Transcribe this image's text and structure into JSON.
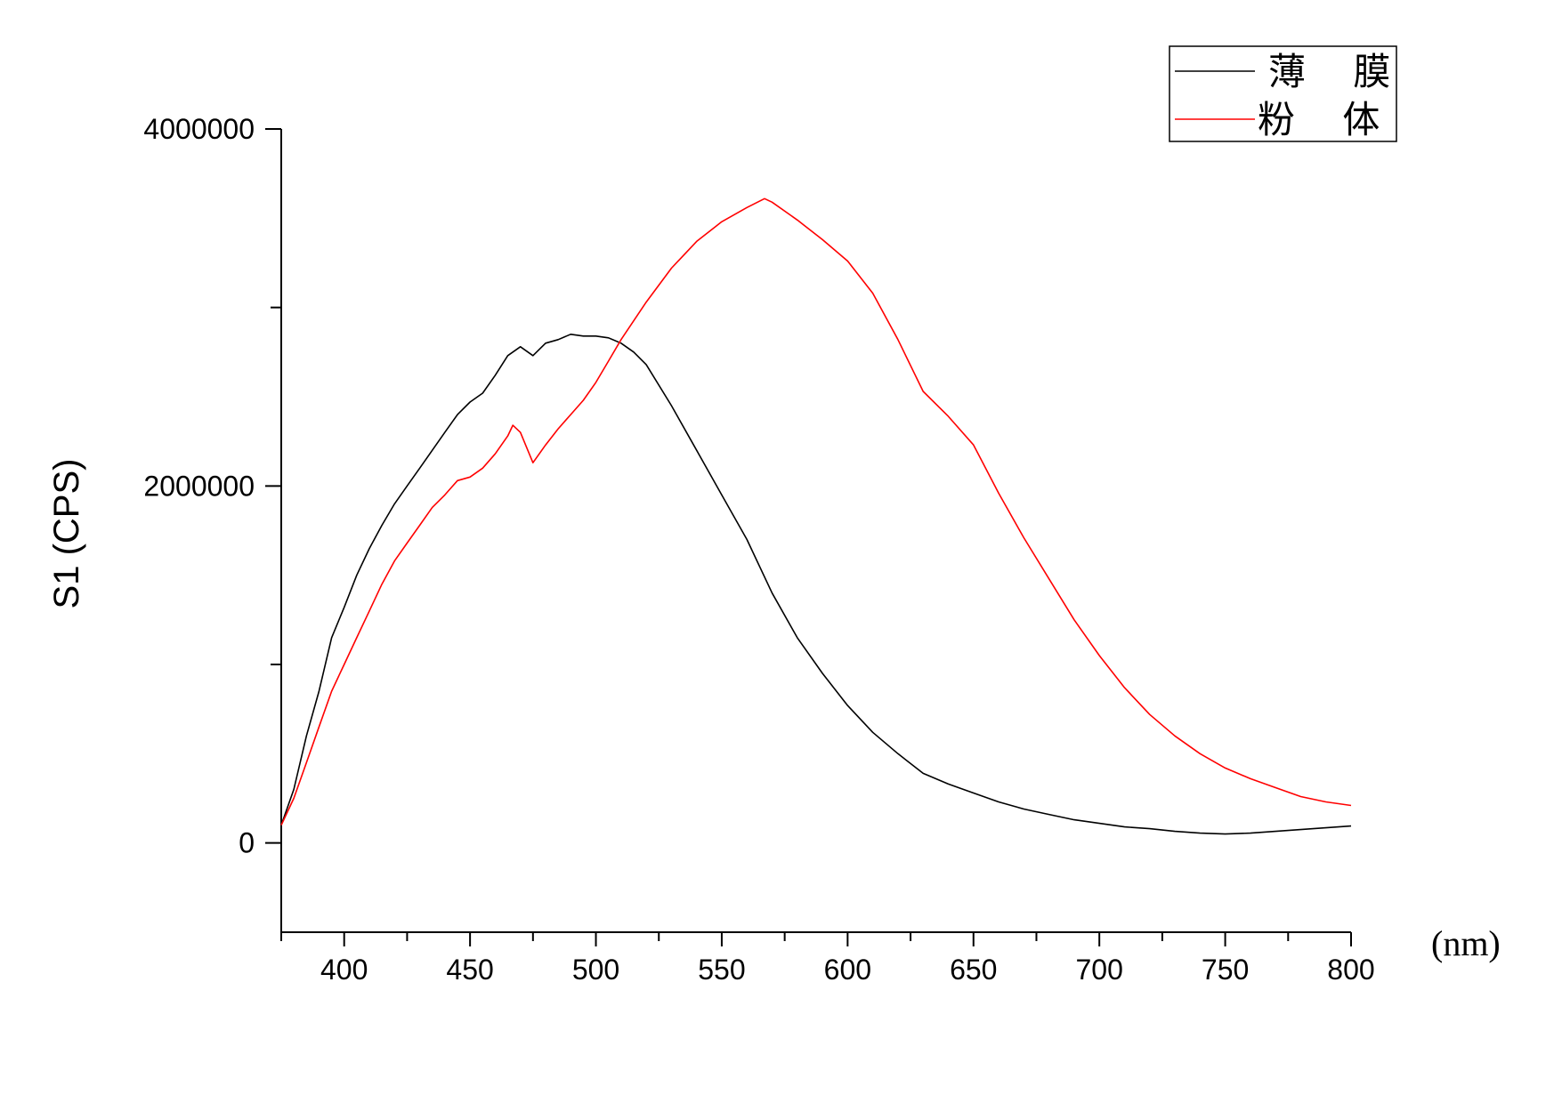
{
  "chart_data": {
    "type": "line",
    "title": "",
    "xlabel": "",
    "x_unit_label": "(nm)",
    "ylabel": "S1 (CPS)",
    "xlim": [
      375,
      800
    ],
    "ylim": [
      -500000,
      4000000
    ],
    "x_ticks": [
      400,
      450,
      500,
      550,
      600,
      650,
      700,
      750,
      800
    ],
    "x_tick_labels": [
      "400",
      "450",
      "500",
      "550",
      "600",
      "650",
      "700",
      "750",
      "800"
    ],
    "y_ticks": [
      0,
      2000000,
      4000000
    ],
    "y_tick_labels": [
      "0",
      "2000000",
      "4000000"
    ],
    "grid": false,
    "legend_position": "top-right",
    "series": [
      {
        "name": "薄 膜",
        "color": "#000000",
        "x": [
          375,
          380,
          385,
          390,
          395,
          400,
          405,
          410,
          415,
          420,
          425,
          430,
          435,
          440,
          445,
          450,
          455,
          460,
          465,
          470,
          475,
          480,
          485,
          490,
          495,
          500,
          505,
          510,
          515,
          520,
          530,
          540,
          550,
          560,
          570,
          580,
          590,
          600,
          610,
          620,
          630,
          640,
          650,
          660,
          670,
          680,
          690,
          700,
          710,
          720,
          730,
          740,
          750,
          760,
          770,
          780,
          790,
          800
        ],
        "y": [
          100000,
          300000,
          600000,
          850000,
          1150000,
          1320000,
          1500000,
          1650000,
          1780000,
          1900000,
          2000000,
          2100000,
          2200000,
          2300000,
          2400000,
          2470000,
          2520000,
          2620000,
          2730000,
          2780000,
          2730000,
          2800000,
          2820000,
          2850000,
          2840000,
          2840000,
          2830000,
          2800000,
          2750000,
          2680000,
          2450000,
          2200000,
          1950000,
          1700000,
          1400000,
          1150000,
          950000,
          770000,
          620000,
          500000,
          390000,
          330000,
          280000,
          230000,
          190000,
          160000,
          130000,
          110000,
          90000,
          80000,
          65000,
          55000,
          50000,
          55000,
          65000,
          75000,
          85000,
          95000
        ]
      },
      {
        "name": "粉 体",
        "color": "#ff0000",
        "x": [
          375,
          380,
          385,
          390,
          395,
          400,
          405,
          410,
          415,
          420,
          425,
          430,
          435,
          440,
          445,
          450,
          455,
          460,
          465,
          467,
          470,
          475,
          480,
          485,
          490,
          495,
          500,
          505,
          510,
          520,
          530,
          540,
          550,
          560,
          567,
          570,
          580,
          590,
          600,
          610,
          620,
          630,
          640,
          650,
          660,
          670,
          680,
          690,
          700,
          710,
          720,
          730,
          740,
          750,
          760,
          770,
          780,
          790,
          800
        ],
        "y": [
          100000,
          250000,
          450000,
          650000,
          850000,
          1000000,
          1150000,
          1300000,
          1450000,
          1580000,
          1680000,
          1780000,
          1880000,
          1950000,
          2030000,
          2050000,
          2100000,
          2180000,
          2280000,
          2340000,
          2300000,
          2130000,
          2230000,
          2320000,
          2400000,
          2480000,
          2580000,
          2700000,
          2820000,
          3030000,
          3220000,
          3370000,
          3480000,
          3560000,
          3610000,
          3590000,
          3490000,
          3380000,
          3260000,
          3080000,
          2820000,
          2530000,
          2390000,
          2230000,
          1960000,
          1710000,
          1480000,
          1250000,
          1050000,
          870000,
          720000,
          600000,
          500000,
          420000,
          360000,
          310000,
          260000,
          230000,
          210000
        ]
      }
    ]
  }
}
